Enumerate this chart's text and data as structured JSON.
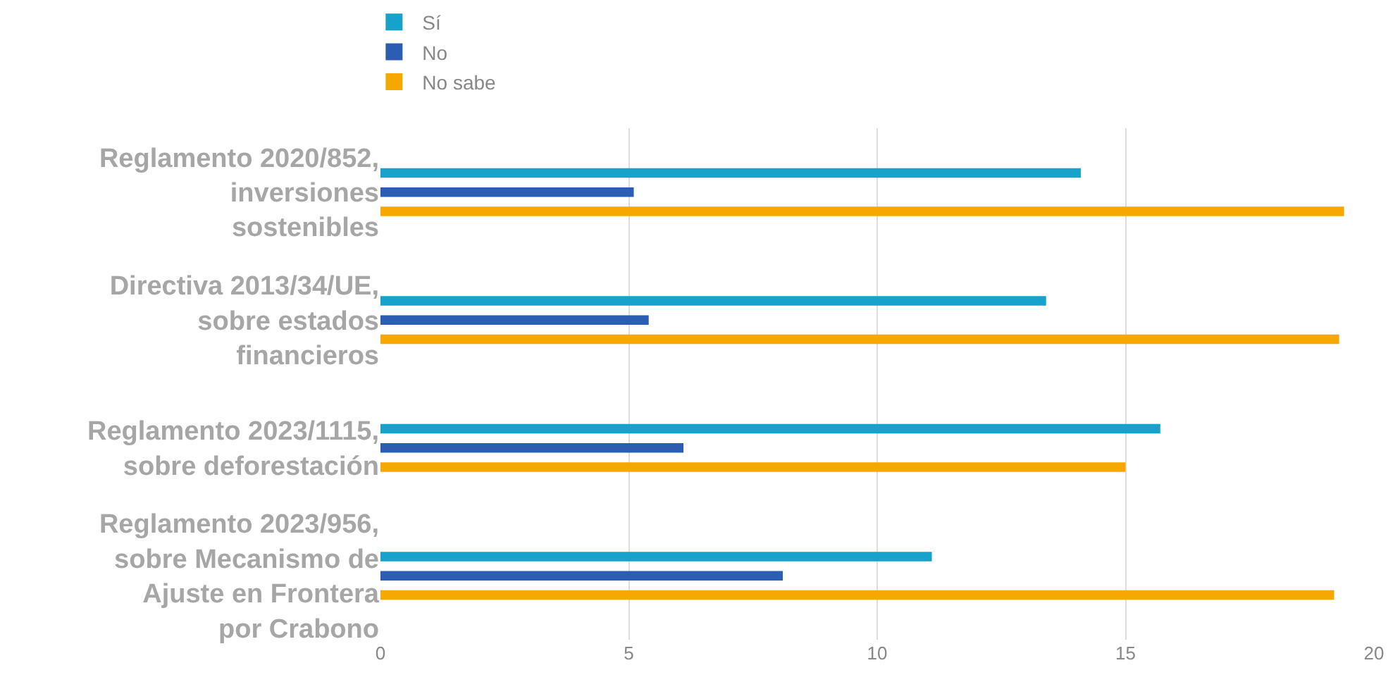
{
  "chart_data": {
    "type": "bar",
    "orientation": "horizontal",
    "categories": [
      "Reglamento 2020/852, inversiones sostenibles",
      "Directiva 2013/34/UE, sobre estados financieros",
      "Reglamento 2023/1115, sobre deforestación",
      "Reglamento 2023/956, sobre Mecanismo de Ajuste en Frontera por Crabono"
    ],
    "series": [
      {
        "name": "Sí",
        "color": "#17a2cc",
        "values": [
          14.1,
          13.4,
          15.7,
          11.1
        ]
      },
      {
        "name": "No",
        "color": "#2b5db2",
        "values": [
          5.1,
          5.4,
          6.1,
          8.1
        ]
      },
      {
        "name": "No sabe",
        "color": "#f7a800",
        "values": [
          19.4,
          19.3,
          15,
          19.2
        ]
      }
    ],
    "xlim": [
      0,
      20
    ],
    "xticks": [
      0,
      5,
      10,
      15,
      20
    ],
    "grid": "x",
    "legend": "top"
  }
}
